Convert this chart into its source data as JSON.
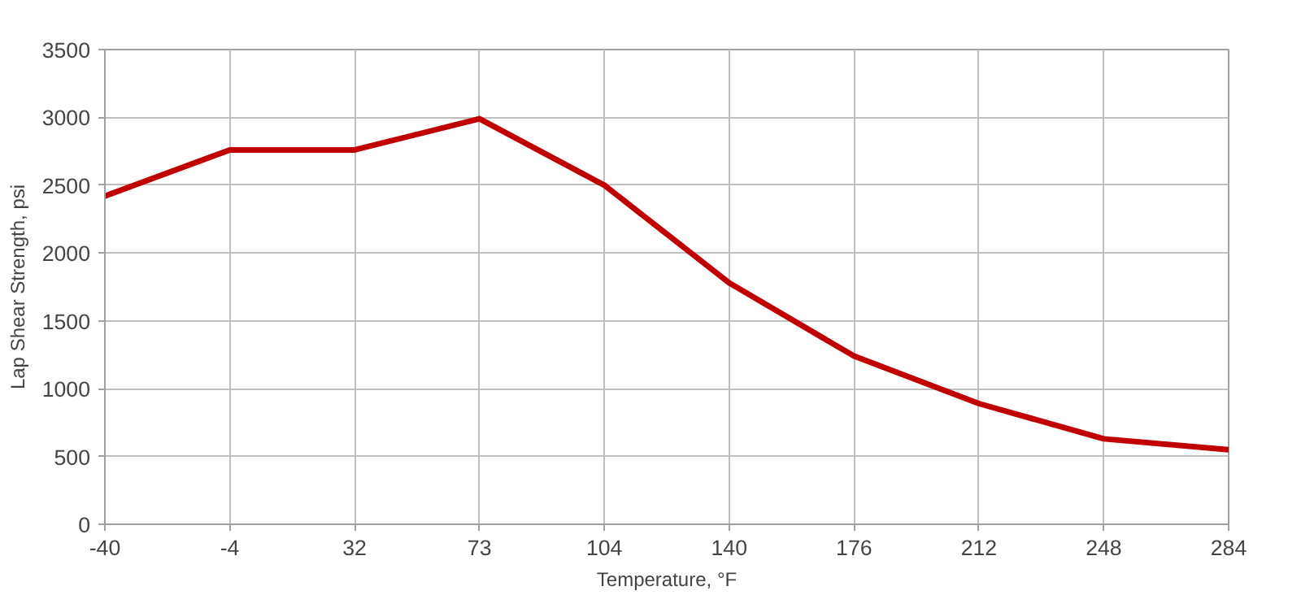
{
  "chart_data": {
    "type": "line",
    "xlabel": "Temperature, °F",
    "ylabel": "Lap Shear Strength, psi",
    "categories": [
      "-40",
      "-4",
      "32",
      "73",
      "104",
      "140",
      "176",
      "212",
      "248",
      "284"
    ],
    "series": [
      {
        "color": "#c00000",
        "values": [
          2420,
          2760,
          2760,
          2990,
          2500,
          1780,
          1240,
          890,
          630,
          550
        ]
      }
    ],
    "ylim": [
      0,
      3500
    ],
    "yticks": [
      0,
      500,
      1000,
      1500,
      2000,
      2500,
      3000,
      3500
    ],
    "grid": true,
    "line_style": "solid",
    "marker": "none"
  }
}
